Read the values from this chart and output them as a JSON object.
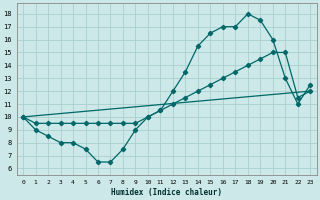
{
  "xlabel": "Humidex (Indice chaleur)",
  "background_color": "#cce8e8",
  "grid_color": "#aad0d0",
  "line_color": "#006868",
  "xlim": [
    -0.5,
    23.5
  ],
  "ylim": [
    5.5,
    18.8
  ],
  "xticks": [
    0,
    1,
    2,
    3,
    4,
    5,
    6,
    7,
    8,
    9,
    10,
    11,
    12,
    13,
    14,
    15,
    16,
    17,
    18,
    19,
    20,
    21,
    22,
    23
  ],
  "yticks": [
    6,
    7,
    8,
    9,
    10,
    11,
    12,
    13,
    14,
    15,
    16,
    17,
    18
  ],
  "line1_x": [
    0,
    1,
    2,
    3,
    4,
    5,
    6,
    7,
    8,
    9,
    10,
    11,
    12,
    13,
    14,
    15,
    16,
    17,
    18,
    19,
    20,
    21,
    22,
    23
  ],
  "line1_y": [
    10,
    9,
    8.5,
    8.0,
    8.0,
    7.5,
    6.5,
    6.5,
    7.5,
    9.0,
    10.0,
    10.5,
    12.0,
    13.5,
    15.5,
    16.5,
    17.0,
    17.0,
    18.0,
    17.5,
    16.0,
    13.0,
    11.0,
    12.5
  ],
  "line2_x": [
    0,
    1,
    2,
    3,
    4,
    5,
    6,
    7,
    8,
    9,
    10,
    11,
    12,
    13,
    14,
    15,
    16,
    17,
    18,
    19,
    20,
    21,
    22,
    23
  ],
  "line2_y": [
    10,
    9.5,
    9.5,
    9.5,
    9.5,
    9.5,
    9.5,
    9.5,
    9.5,
    9.5,
    10.0,
    10.5,
    11.0,
    11.5,
    12.0,
    12.5,
    13.0,
    13.5,
    14.0,
    14.5,
    15.0,
    15.0,
    11.5,
    12.0
  ],
  "line3_x": [
    0,
    23
  ],
  "line3_y": [
    10,
    12.0
  ]
}
